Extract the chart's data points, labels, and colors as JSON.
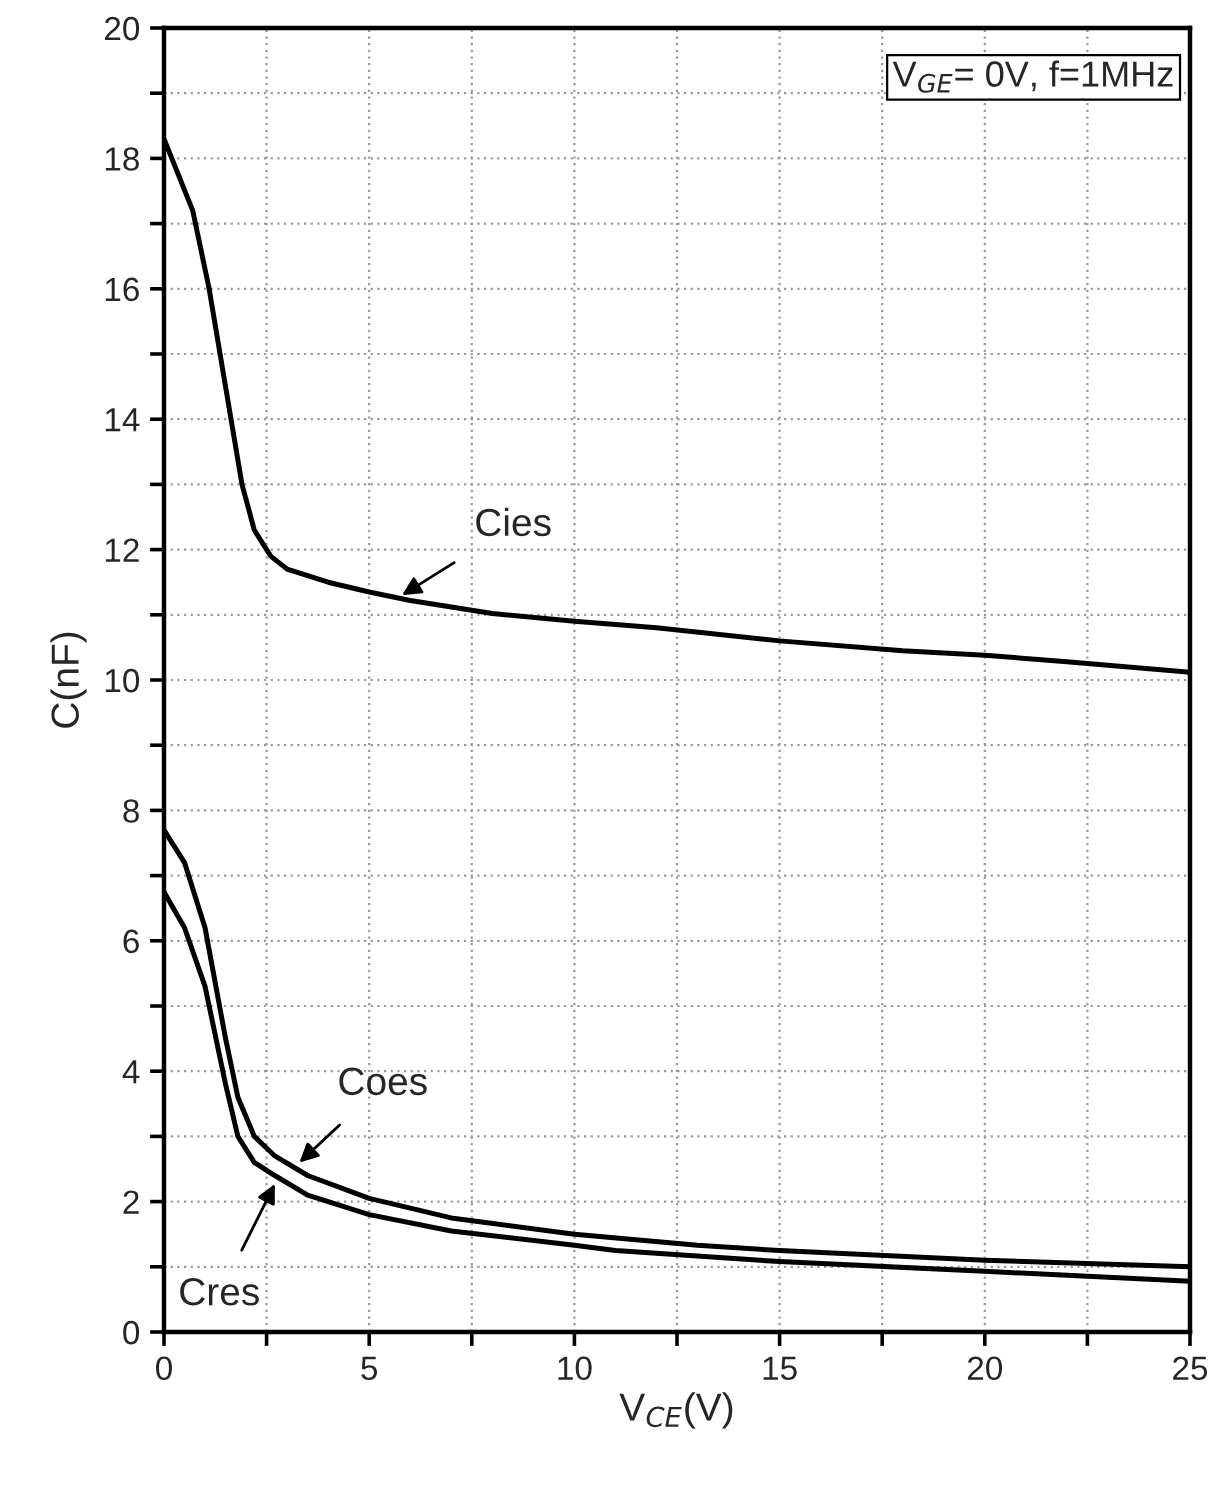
{
  "chart_data": {
    "type": "line",
    "xlabel": "V$_{CE}$(V)",
    "ylabel": "C(nF)",
    "xlim": [
      0,
      25
    ],
    "ylim": [
      0,
      20
    ],
    "xticks": [
      0,
      {
        "value": 2.5,
        "label": null
      },
      5,
      {
        "value": 7.5,
        "label": null
      },
      10,
      {
        "value": 12.5,
        "label": null
      },
      15,
      {
        "value": 17.5,
        "label": null
      },
      20,
      {
        "value": 22.5,
        "label": null
      },
      25
    ],
    "yticks": [
      0,
      {
        "value": 1,
        "label": null
      },
      2,
      {
        "value": 3,
        "label": null
      },
      4,
      {
        "value": 5,
        "label": null
      },
      6,
      {
        "value": 7,
        "label": null
      },
      8,
      {
        "value": 9,
        "label": null
      },
      10,
      {
        "value": 11,
        "label": null
      },
      12,
      {
        "value": 13,
        "label": null
      },
      14,
      {
        "value": 15,
        "label": null
      },
      16,
      {
        "value": 17,
        "label": null
      },
      18,
      {
        "value": 19,
        "label": null
      },
      20
    ],
    "grid": true,
    "line_style": "solid",
    "marker": "none",
    "series": [
      {
        "color": "#000000",
        "x": [
          0,
          0.7,
          1.1,
          1.5,
          1.9,
          2.2,
          2.6,
          3,
          4,
          5,
          6,
          8,
          10,
          12,
          15,
          18,
          20,
          22,
          25
        ],
        "values": [
          18.3,
          17.2,
          16.0,
          14.5,
          13.0,
          12.3,
          11.9,
          11.7,
          11.5,
          11.35,
          11.22,
          11.02,
          10.9,
          10.8,
          10.6,
          10.45,
          10.38,
          10.28,
          10.12
        ]
      },
      {
        "color": "#000000",
        "x": [
          0,
          0.5,
          1,
          1.5,
          1.8,
          2.2,
          2.7,
          3.5,
          5,
          7,
          10,
          13,
          15,
          20,
          25
        ],
        "values": [
          7.7,
          7.2,
          6.2,
          4.5,
          3.6,
          3.0,
          2.7,
          2.4,
          2.05,
          1.75,
          1.5,
          1.33,
          1.25,
          1.1,
          1.0
        ]
      },
      {
        "color": "#000000",
        "x": [
          0,
          0.5,
          1,
          1.5,
          1.8,
          2.2,
          2.7,
          3.5,
          5,
          7,
          10,
          11,
          15,
          20,
          25
        ],
        "values": [
          6.75,
          6.2,
          5.3,
          3.8,
          3.0,
          2.6,
          2.4,
          2.1,
          1.8,
          1.55,
          1.33,
          1.25,
          1.08,
          0.93,
          0.78
        ]
      }
    ],
    "annotations": [
      {
        "text": "Cies",
        "x": 5.8,
        "y": 11.3
      },
      {
        "text": "Coes",
        "x": 3.3,
        "y": 2.6
      },
      {
        "text": "Cres",
        "x": 2.7,
        "y": 2.27
      },
      "V$_{GE}$= 0V, f=1MHz"
    ]
  }
}
